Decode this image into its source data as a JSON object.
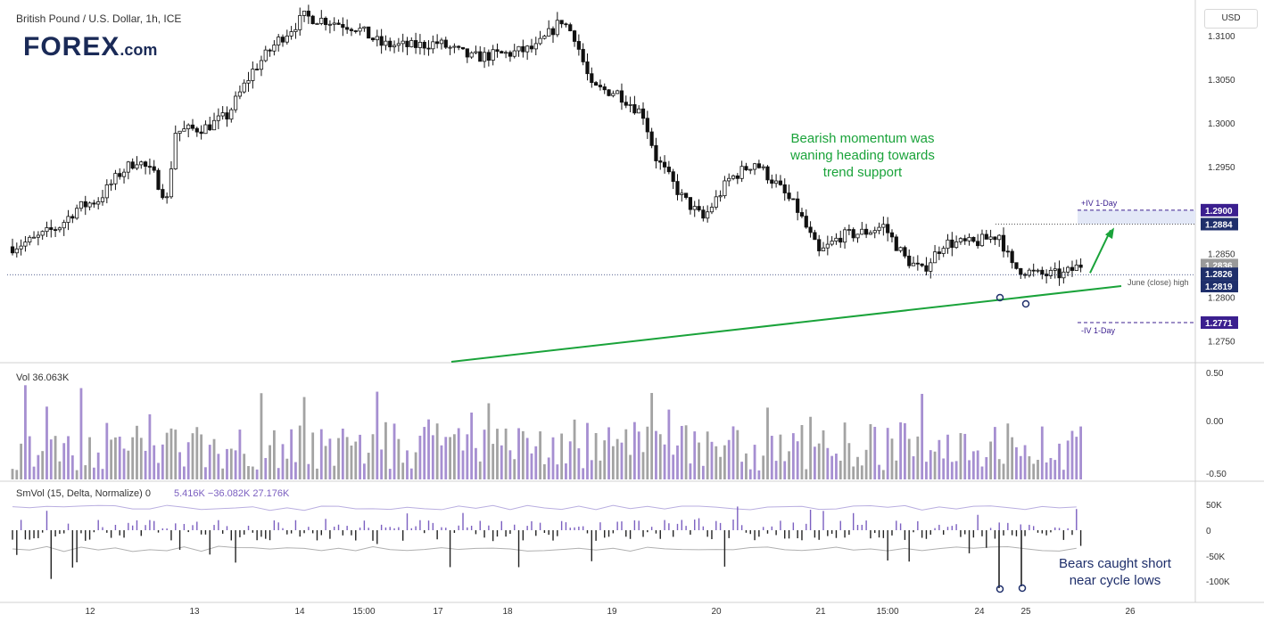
{
  "header": {
    "symbol": "British Pound / U.S. Dollar, 1h, ICE",
    "currency": "USD",
    "logo_text": "FOREX",
    "logo_suffix": ".com"
  },
  "chart_data": {
    "type": "candlestick",
    "ylim": [
      1.2725,
      1.3135
    ],
    "price_ticks": [
      "1.3100",
      "1.3050",
      "1.3000",
      "1.2950",
      "1.2850",
      "1.2800",
      "1.2750"
    ],
    "x_ticks": [
      "12",
      "13",
      "14",
      "15:00",
      "17",
      "18",
      "19",
      "20",
      "21",
      "15:00",
      "24",
      "25",
      "26"
    ],
    "annotations": {
      "momentum_note": [
        "Bearish momentum was",
        "waning heading towards",
        "trend support"
      ],
      "bears_note": [
        "Bears caught short",
        "near cycle lows"
      ],
      "june_high_label": "June (close) high",
      "iv_upper_label": "+IV 1-Day",
      "iv_lower_label": "-IV 1-Day"
    },
    "price_badges": [
      {
        "value": 1.29,
        "label": "1.2900",
        "color": "#3b1f8f"
      },
      {
        "value": 1.2884,
        "label": "1.2884",
        "color": "#1f2f6b"
      },
      {
        "value": 1.2836,
        "label": "1.2836",
        "color": "#9a9a9a"
      },
      {
        "value": 1.2826,
        "label": "1.2826",
        "color": "#1f2f6b"
      },
      {
        "value": 1.2819,
        "label": "1.2819",
        "color": "#1f2f6b"
      },
      {
        "value": 1.2771,
        "label": "1.2771",
        "color": "#3b1f8f"
      }
    ],
    "iv_upper": 1.29,
    "iv_lower": 1.2771,
    "june_close_high": 1.2826,
    "volume_panel": {
      "label": "Vol",
      "value": "36.063K",
      "ticks": [
        "0.50",
        "0.00",
        "-0.50"
      ]
    },
    "smvol_panel": {
      "label": "SmVol (15, Delta, Normalize)",
      "value0": "0",
      "value1": "5.416K",
      "value2": "−36.082K",
      "value3": "27.176K",
      "ticks": [
        "50K",
        "0",
        "-50K",
        "-100K"
      ]
    },
    "colors": {
      "up": "#000000",
      "down": "#000000",
      "volume_up": "#a68fd1",
      "volume_down": "#a3a3a3",
      "trendline": "#1aa33a",
      "annotation_green": "#1aa33a",
      "annotation_navy": "#1f2f6b"
    }
  }
}
